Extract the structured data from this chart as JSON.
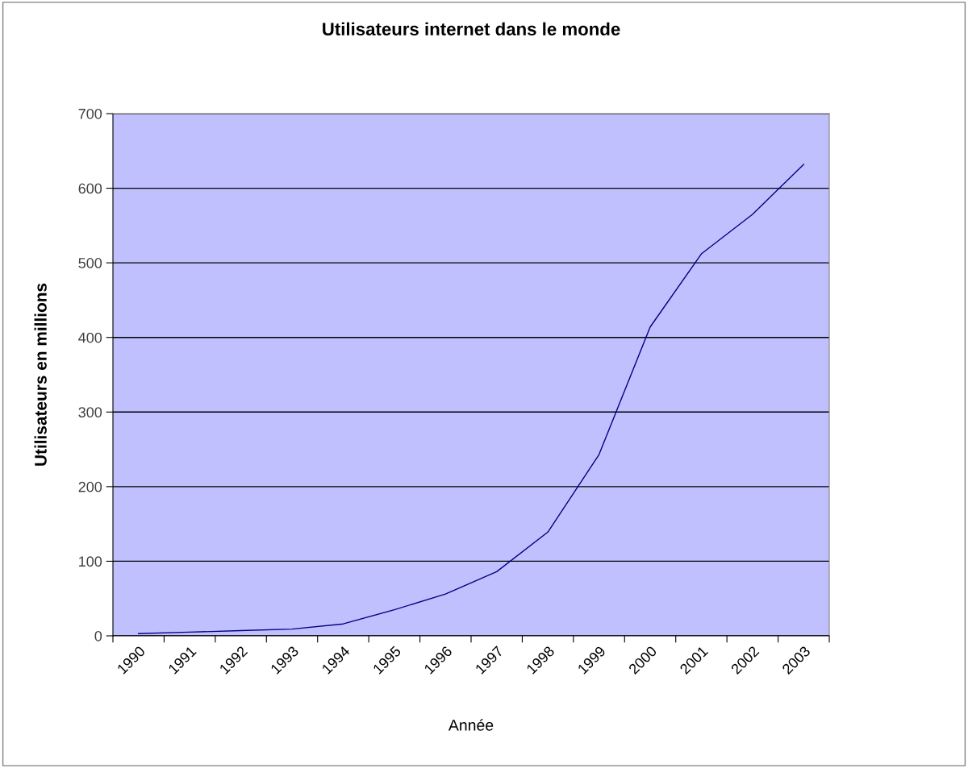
{
  "chart_data": {
    "type": "line",
    "title": "Utilisateurs internet dans le monde",
    "xlabel": "Année",
    "ylabel": "Utilisateurs en millions",
    "categories": [
      "1990",
      "1991",
      "1992",
      "1993",
      "1994",
      "1995",
      "1996",
      "1997",
      "1998",
      "1999",
      "2000",
      "2001",
      "2002",
      "2003"
    ],
    "series": [
      {
        "color": "#000080",
        "values": [
          3,
          5,
          7,
          9,
          16,
          35,
          56,
          86,
          139,
          243,
          414,
          512,
          565,
          632
        ]
      }
    ],
    "ylim": [
      0,
      700
    ],
    "yticks": [
      0,
      100,
      200,
      300,
      400,
      500,
      600,
      700
    ],
    "grid": "y",
    "marker": "none",
    "line_style": "solid"
  }
}
